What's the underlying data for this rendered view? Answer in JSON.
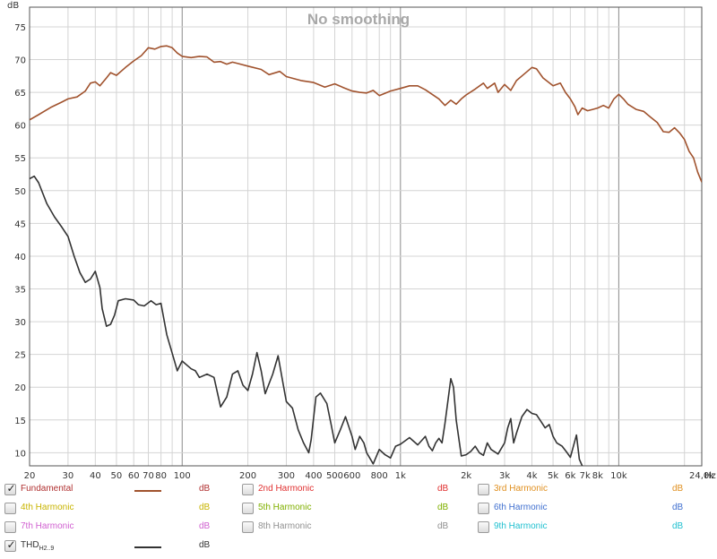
{
  "chart_data": {
    "type": "line",
    "title": "No smoothing",
    "yunit": "dB",
    "xunit": "Hz",
    "xscale": "log",
    "xlim": [
      20,
      24000
    ],
    "ylim": [
      8,
      78
    ],
    "grid": true,
    "y_ticks": [
      "10",
      "15",
      "20",
      "25",
      "30",
      "35",
      "40",
      "45",
      "50",
      "55",
      "60",
      "65",
      "70",
      "75"
    ],
    "x_ticks": [
      "20",
      "30",
      "40",
      "50",
      "60",
      "70",
      "80",
      "100",
      "200",
      "300",
      "400",
      "500",
      "600",
      "800",
      "1k",
      "2k",
      "3k",
      "4k",
      "5k",
      "6k",
      "7k",
      "8k",
      "10k",
      "24,0k"
    ],
    "series": [
      {
        "name": "Fundamental",
        "color": "#a0522d",
        "points": [
          [
            20,
            60.8
          ],
          [
            22,
            61.6
          ],
          [
            25,
            62.7
          ],
          [
            28,
            63.5
          ],
          [
            30,
            64.0
          ],
          [
            33,
            64.3
          ],
          [
            36,
            65.2
          ],
          [
            38,
            66.4
          ],
          [
            40,
            66.6
          ],
          [
            42,
            66.0
          ],
          [
            45,
            67.2
          ],
          [
            47,
            68.0
          ],
          [
            50,
            67.6
          ],
          [
            55,
            68.8
          ],
          [
            60,
            69.8
          ],
          [
            65,
            70.6
          ],
          [
            70,
            71.8
          ],
          [
            75,
            71.6
          ],
          [
            80,
            72.0
          ],
          [
            85,
            72.1
          ],
          [
            90,
            71.8
          ],
          [
            95,
            71.0
          ],
          [
            100,
            70.5
          ],
          [
            110,
            70.3
          ],
          [
            120,
            70.5
          ],
          [
            130,
            70.4
          ],
          [
            140,
            69.6
          ],
          [
            150,
            69.7
          ],
          [
            160,
            69.3
          ],
          [
            170,
            69.6
          ],
          [
            180,
            69.4
          ],
          [
            200,
            69.0
          ],
          [
            230,
            68.5
          ],
          [
            250,
            67.7
          ],
          [
            280,
            68.2
          ],
          [
            300,
            67.4
          ],
          [
            350,
            66.8
          ],
          [
            400,
            66.5
          ],
          [
            450,
            65.8
          ],
          [
            500,
            66.3
          ],
          [
            550,
            65.7
          ],
          [
            600,
            65.2
          ],
          [
            650,
            65.0
          ],
          [
            700,
            64.9
          ],
          [
            750,
            65.3
          ],
          [
            800,
            64.5
          ],
          [
            900,
            65.2
          ],
          [
            1000,
            65.6
          ],
          [
            1100,
            66.0
          ],
          [
            1200,
            66.0
          ],
          [
            1300,
            65.4
          ],
          [
            1500,
            64.0
          ],
          [
            1600,
            63.0
          ],
          [
            1700,
            63.8
          ],
          [
            1800,
            63.2
          ],
          [
            1900,
            64.0
          ],
          [
            2000,
            64.6
          ],
          [
            2200,
            65.5
          ],
          [
            2400,
            66.4
          ],
          [
            2500,
            65.6
          ],
          [
            2700,
            66.4
          ],
          [
            2800,
            65.0
          ],
          [
            3000,
            66.2
          ],
          [
            3200,
            65.3
          ],
          [
            3400,
            66.8
          ],
          [
            3600,
            67.5
          ],
          [
            4000,
            68.8
          ],
          [
            4200,
            68.6
          ],
          [
            4500,
            67.2
          ],
          [
            5000,
            66.0
          ],
          [
            5400,
            66.4
          ],
          [
            5700,
            65.0
          ],
          [
            6000,
            64.0
          ],
          [
            6300,
            62.8
          ],
          [
            6500,
            61.6
          ],
          [
            6800,
            62.6
          ],
          [
            7200,
            62.2
          ],
          [
            7600,
            62.4
          ],
          [
            8000,
            62.6
          ],
          [
            8500,
            63.0
          ],
          [
            9000,
            62.6
          ],
          [
            9500,
            64.0
          ],
          [
            10000,
            64.7
          ],
          [
            10500,
            64.0
          ],
          [
            11000,
            63.2
          ],
          [
            12000,
            62.4
          ],
          [
            13000,
            62.1
          ],
          [
            14000,
            61.2
          ],
          [
            15000,
            60.4
          ],
          [
            16000,
            59.0
          ],
          [
            17000,
            58.9
          ],
          [
            18000,
            59.6
          ],
          [
            19000,
            58.8
          ],
          [
            20000,
            57.8
          ],
          [
            21000,
            56.0
          ],
          [
            22000,
            55.0
          ],
          [
            23000,
            52.8
          ],
          [
            24000,
            51.3
          ]
        ]
      },
      {
        "name": "THD H2..9",
        "color": "#333333",
        "points": [
          [
            20,
            51.8
          ],
          [
            21,
            52.2
          ],
          [
            22,
            51.2
          ],
          [
            24,
            48.0
          ],
          [
            26,
            46.0
          ],
          [
            28,
            44.5
          ],
          [
            30,
            43.0
          ],
          [
            32,
            40.0
          ],
          [
            34,
            37.5
          ],
          [
            36,
            36.0
          ],
          [
            38,
            36.5
          ],
          [
            40,
            37.7
          ],
          [
            42,
            35.2
          ],
          [
            43,
            32.0
          ],
          [
            45,
            29.3
          ],
          [
            47,
            29.6
          ],
          [
            49,
            31.0
          ],
          [
            51,
            33.2
          ],
          [
            55,
            33.5
          ],
          [
            60,
            33.3
          ],
          [
            63,
            32.6
          ],
          [
            67,
            32.4
          ],
          [
            72,
            33.2
          ],
          [
            76,
            32.6
          ],
          [
            80,
            32.8
          ],
          [
            85,
            28.0
          ],
          [
            90,
            25.2
          ],
          [
            95,
            22.5
          ],
          [
            100,
            24.0
          ],
          [
            110,
            22.8
          ],
          [
            115,
            22.5
          ],
          [
            120,
            21.5
          ],
          [
            130,
            22.0
          ],
          [
            140,
            21.5
          ],
          [
            150,
            17.0
          ],
          [
            160,
            18.5
          ],
          [
            170,
            22.0
          ],
          [
            180,
            22.5
          ],
          [
            190,
            20.3
          ],
          [
            200,
            19.5
          ],
          [
            210,
            22.0
          ],
          [
            220,
            25.3
          ],
          [
            230,
            22.5
          ],
          [
            240,
            19.0
          ],
          [
            260,
            22.0
          ],
          [
            275,
            24.8
          ],
          [
            290,
            20.5
          ],
          [
            300,
            17.8
          ],
          [
            320,
            16.8
          ],
          [
            340,
            13.5
          ],
          [
            360,
            11.5
          ],
          [
            380,
            10.0
          ],
          [
            390,
            12.0
          ],
          [
            410,
            18.5
          ],
          [
            430,
            19.1
          ],
          [
            460,
            17.5
          ],
          [
            480,
            14.5
          ],
          [
            500,
            11.5
          ],
          [
            530,
            13.5
          ],
          [
            560,
            15.5
          ],
          [
            600,
            12.5
          ],
          [
            620,
            10.5
          ],
          [
            650,
            12.5
          ],
          [
            680,
            11.5
          ],
          [
            700,
            10.0
          ],
          [
            750,
            8.3
          ],
          [
            800,
            10.5
          ],
          [
            850,
            9.7
          ],
          [
            900,
            9.2
          ],
          [
            950,
            11.0
          ],
          [
            1000,
            11.3
          ],
          [
            1100,
            12.3
          ],
          [
            1200,
            11.2
          ],
          [
            1300,
            12.5
          ],
          [
            1350,
            11.0
          ],
          [
            1400,
            10.3
          ],
          [
            1450,
            11.5
          ],
          [
            1500,
            12.2
          ],
          [
            1550,
            11.5
          ],
          [
            1600,
            14.5
          ],
          [
            1700,
            21.3
          ],
          [
            1750,
            20.0
          ],
          [
            1800,
            15.0
          ],
          [
            1900,
            9.5
          ],
          [
            2000,
            9.7
          ],
          [
            2100,
            10.2
          ],
          [
            2200,
            11.0
          ],
          [
            2300,
            10.0
          ],
          [
            2400,
            9.6
          ],
          [
            2500,
            11.5
          ],
          [
            2600,
            10.5
          ],
          [
            2800,
            9.8
          ],
          [
            3000,
            11.5
          ],
          [
            3100,
            13.8
          ],
          [
            3200,
            15.2
          ],
          [
            3300,
            11.5
          ],
          [
            3400,
            13.0
          ],
          [
            3600,
            15.5
          ],
          [
            3800,
            16.6
          ],
          [
            4000,
            16.0
          ],
          [
            4200,
            15.8
          ],
          [
            4400,
            14.8
          ],
          [
            4600,
            13.8
          ],
          [
            4800,
            14.3
          ],
          [
            5000,
            12.5
          ],
          [
            5200,
            11.5
          ],
          [
            5500,
            11.0
          ],
          [
            5800,
            10.0
          ],
          [
            6000,
            9.3
          ],
          [
            6200,
            11.0
          ],
          [
            6400,
            12.7
          ],
          [
            6600,
            9.0
          ],
          [
            6800,
            8.0
          ],
          [
            7000,
            7.6
          ]
        ]
      }
    ]
  },
  "legend": {
    "rows": [
      [
        {
          "label": "Fundamental",
          "unit": "dB",
          "color": "#b03030",
          "checked": true,
          "line_color": "#a0522d"
        },
        {
          "label": "2nd Harmonic",
          "unit": "dB",
          "color": "#e03030",
          "checked": false
        },
        {
          "label": "3rd Harmonic",
          "unit": "dB",
          "color": "#e09020",
          "checked": false
        }
      ],
      [
        {
          "label": "4th Harmonic",
          "unit": "dB",
          "color": "#c8b400",
          "checked": false
        },
        {
          "label": "5th Harmonic",
          "unit": "dB",
          "color": "#80b000",
          "checked": false
        },
        {
          "label": "6th Harmonic",
          "unit": "dB",
          "color": "#4070d0",
          "checked": false
        }
      ],
      [
        {
          "label": "7th Harmonic",
          "unit": "dB",
          "color": "#d060d0",
          "checked": false
        },
        {
          "label": "8th Harmonic",
          "unit": "dB",
          "color": "#909090",
          "checked": false
        },
        {
          "label": "9th Harmonic",
          "unit": "dB",
          "color": "#20c0d0",
          "checked": false
        }
      ]
    ],
    "thd": {
      "label_main": "THD",
      "label_sub": "H2..9",
      "unit": "dB",
      "color": "#333333",
      "checked": true,
      "line_color": "#333333"
    },
    "check_glyph": "✓"
  }
}
